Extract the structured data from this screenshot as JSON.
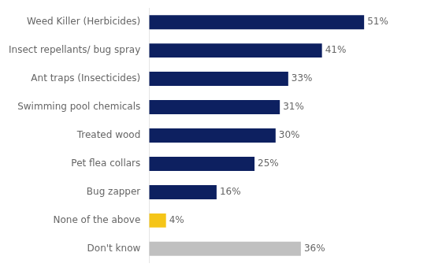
{
  "chart_data": {
    "type": "bar",
    "orientation": "horizontal",
    "categories": [
      "Don't know",
      "None of the above",
      "Bug zapper",
      "Pet flea collars",
      "Treated wood",
      "Swimming pool chemicals",
      "Ant traps (Insecticides)",
      "Insect repellants/ bug spray",
      "Weed Killer (Herbicides)"
    ],
    "values": [
      36,
      4,
      16,
      25,
      30,
      31,
      33,
      41,
      51
    ],
    "value_labels": [
      "36%",
      "4%",
      "16%",
      "25%",
      "30%",
      "31%",
      "33%",
      "41%",
      "51%"
    ],
    "colors": [
      "#c0c0c0",
      "#f5c518",
      "#0d2060",
      "#0d2060",
      "#0d2060",
      "#0d2060",
      "#0d2060",
      "#0d2060",
      "#0d2060"
    ],
    "xlim": [
      0,
      62
    ],
    "data_labels": true,
    "tick_labels": "y",
    "grid": false
  }
}
